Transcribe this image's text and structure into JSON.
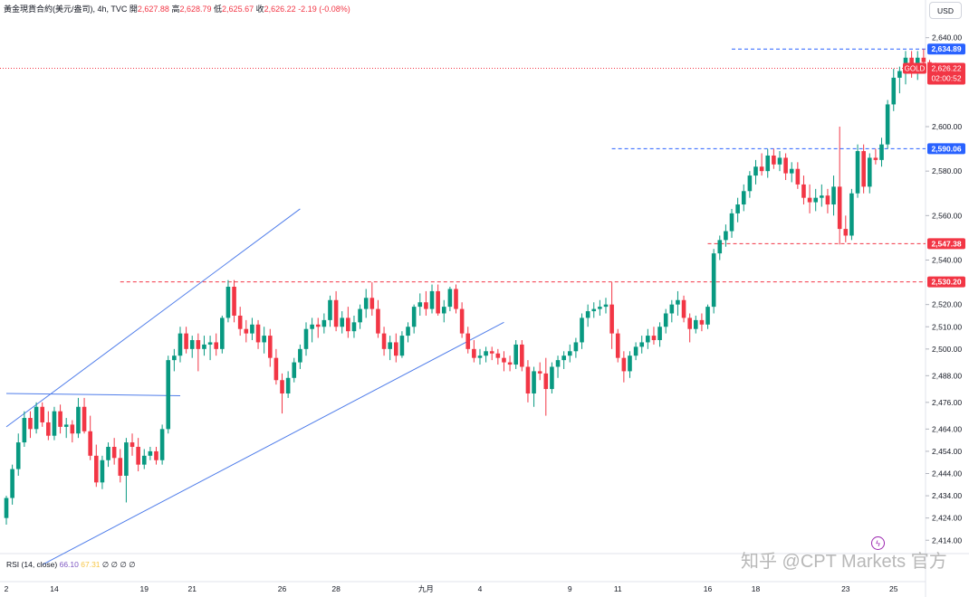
{
  "header": {
    "title": "黃金現貨合約(美元/盎司), 4h, TVC",
    "open_label": "開",
    "open": "2,627.88",
    "high_label": "高",
    "high": "2,628.79",
    "low_label": "低",
    "low": "2,625.67",
    "close_label": "收",
    "close": "2,626.22",
    "change": "-2.19 (-0.08%)"
  },
  "currency_button": "USD",
  "rsi": {
    "label": "RSI (14, close)",
    "value1": "66.10",
    "value2": "67.31",
    "extras": "∅ ∅ ∅ ∅"
  },
  "watermark": "知乎 @CPT Markets 官方",
  "colors": {
    "up": "#089981",
    "down": "#f23645",
    "trendline": "#4f7dea",
    "level_blue": "#2962ff",
    "level_red": "#f23645"
  },
  "chart_data": {
    "type": "candlestick",
    "symbol": "GOLD",
    "interval": "4h",
    "ylim": [
      2408,
      2648
    ],
    "y_ticks": [
      "2,640.00",
      "2,600.00",
      "2,580.00",
      "2,560.00",
      "2,540.00",
      "2,520.00",
      "2,510.00",
      "2,500.00",
      "2,488.00",
      "2,476.00",
      "2,464.00",
      "2,454.00",
      "2,444.00",
      "2,434.00",
      "2,424.00",
      "2,414.00"
    ],
    "x_labels": [
      "2",
      "14",
      "19",
      "21",
      "26",
      "28",
      "九月",
      "4",
      "9",
      "11",
      "16",
      "18",
      "23",
      "25"
    ],
    "last_price_label": "GOLD",
    "last_price": "2,626.22",
    "countdown": "02:00:52",
    "levels": [
      {
        "label": "2,634.89",
        "value": 2634.89,
        "color": "blue"
      },
      {
        "label": "2,590.06",
        "value": 2590.06,
        "color": "blue"
      },
      {
        "label": "2,547.38",
        "value": 2547.38,
        "color": "red"
      },
      {
        "label": "2,530.20",
        "value": 2530.2,
        "color": "red"
      }
    ],
    "trendlines": [
      {
        "from": [
          0,
          2465
        ],
        "to": [
          49,
          2563
        ]
      },
      {
        "from": [
          6,
          2403
        ],
        "to": [
          83,
          2512
        ]
      },
      {
        "from": [
          0,
          2480
        ],
        "to": [
          29,
          2479
        ]
      }
    ],
    "candles": [
      {
        "o": 2424,
        "h": 2434,
        "l": 2421,
        "c": 2433
      },
      {
        "o": 2433,
        "h": 2448,
        "l": 2430,
        "c": 2446
      },
      {
        "o": 2446,
        "h": 2462,
        "l": 2443,
        "c": 2458
      },
      {
        "o": 2458,
        "h": 2472,
        "l": 2456,
        "c": 2469
      },
      {
        "o": 2469,
        "h": 2472,
        "l": 2460,
        "c": 2464
      },
      {
        "o": 2464,
        "h": 2476,
        "l": 2462,
        "c": 2474
      },
      {
        "o": 2474,
        "h": 2476,
        "l": 2465,
        "c": 2467
      },
      {
        "o": 2467,
        "h": 2472,
        "l": 2459,
        "c": 2461
      },
      {
        "o": 2461,
        "h": 2474,
        "l": 2459,
        "c": 2472
      },
      {
        "o": 2472,
        "h": 2475,
        "l": 2462,
        "c": 2465
      },
      {
        "o": 2465,
        "h": 2469,
        "l": 2460,
        "c": 2466
      },
      {
        "o": 2466,
        "h": 2468,
        "l": 2458,
        "c": 2462
      },
      {
        "o": 2462,
        "h": 2478,
        "l": 2460,
        "c": 2474
      },
      {
        "o": 2474,
        "h": 2478,
        "l": 2462,
        "c": 2463
      },
      {
        "o": 2463,
        "h": 2470,
        "l": 2450,
        "c": 2452
      },
      {
        "o": 2452,
        "h": 2457,
        "l": 2438,
        "c": 2440
      },
      {
        "o": 2440,
        "h": 2452,
        "l": 2437,
        "c": 2450
      },
      {
        "o": 2450,
        "h": 2458,
        "l": 2447,
        "c": 2456
      },
      {
        "o": 2456,
        "h": 2460,
        "l": 2448,
        "c": 2451
      },
      {
        "o": 2451,
        "h": 2455,
        "l": 2440,
        "c": 2443
      },
      {
        "o": 2443,
        "h": 2460,
        "l": 2431,
        "c": 2458
      },
      {
        "o": 2458,
        "h": 2462,
        "l": 2452,
        "c": 2456
      },
      {
        "o": 2456,
        "h": 2460,
        "l": 2445,
        "c": 2448
      },
      {
        "o": 2448,
        "h": 2455,
        "l": 2446,
        "c": 2452
      },
      {
        "o": 2452,
        "h": 2456,
        "l": 2450,
        "c": 2454
      },
      {
        "o": 2454,
        "h": 2456,
        "l": 2448,
        "c": 2450
      },
      {
        "o": 2450,
        "h": 2466,
        "l": 2448,
        "c": 2464
      },
      {
        "o": 2464,
        "h": 2497,
        "l": 2462,
        "c": 2495
      },
      {
        "o": 2495,
        "h": 2500,
        "l": 2490,
        "c": 2497
      },
      {
        "o": 2497,
        "h": 2510,
        "l": 2494,
        "c": 2507
      },
      {
        "o": 2507,
        "h": 2510,
        "l": 2498,
        "c": 2500
      },
      {
        "o": 2500,
        "h": 2506,
        "l": 2496,
        "c": 2504
      },
      {
        "o": 2504,
        "h": 2507,
        "l": 2490,
        "c": 2500
      },
      {
        "o": 2500,
        "h": 2506,
        "l": 2497,
        "c": 2502
      },
      {
        "o": 2502,
        "h": 2506,
        "l": 2495,
        "c": 2503
      },
      {
        "o": 2503,
        "h": 2507,
        "l": 2497,
        "c": 2500
      },
      {
        "o": 2500,
        "h": 2515,
        "l": 2498,
        "c": 2514
      },
      {
        "o": 2514,
        "h": 2531,
        "l": 2512,
        "c": 2528
      },
      {
        "o": 2528,
        "h": 2531,
        "l": 2512,
        "c": 2515
      },
      {
        "o": 2515,
        "h": 2519,
        "l": 2506,
        "c": 2509
      },
      {
        "o": 2509,
        "h": 2513,
        "l": 2503,
        "c": 2507
      },
      {
        "o": 2507,
        "h": 2514,
        "l": 2504,
        "c": 2511
      },
      {
        "o": 2511,
        "h": 2513,
        "l": 2500,
        "c": 2503
      },
      {
        "o": 2503,
        "h": 2510,
        "l": 2498,
        "c": 2506
      },
      {
        "o": 2506,
        "h": 2509,
        "l": 2492,
        "c": 2496
      },
      {
        "o": 2496,
        "h": 2500,
        "l": 2484,
        "c": 2486
      },
      {
        "o": 2486,
        "h": 2489,
        "l": 2471,
        "c": 2480
      },
      {
        "o": 2480,
        "h": 2490,
        "l": 2478,
        "c": 2487
      },
      {
        "o": 2487,
        "h": 2496,
        "l": 2485,
        "c": 2494
      },
      {
        "o": 2494,
        "h": 2502,
        "l": 2491,
        "c": 2500
      },
      {
        "o": 2500,
        "h": 2512,
        "l": 2497,
        "c": 2509
      },
      {
        "o": 2509,
        "h": 2514,
        "l": 2503,
        "c": 2511
      },
      {
        "o": 2511,
        "h": 2514,
        "l": 2505,
        "c": 2510
      },
      {
        "o": 2510,
        "h": 2516,
        "l": 2507,
        "c": 2513
      },
      {
        "o": 2513,
        "h": 2524,
        "l": 2510,
        "c": 2522
      },
      {
        "o": 2522,
        "h": 2526,
        "l": 2508,
        "c": 2510
      },
      {
        "o": 2510,
        "h": 2517,
        "l": 2507,
        "c": 2514
      },
      {
        "o": 2514,
        "h": 2519,
        "l": 2505,
        "c": 2508
      },
      {
        "o": 2508,
        "h": 2515,
        "l": 2505,
        "c": 2512
      },
      {
        "o": 2512,
        "h": 2520,
        "l": 2509,
        "c": 2518
      },
      {
        "o": 2518,
        "h": 2527,
        "l": 2514,
        "c": 2523
      },
      {
        "o": 2523,
        "h": 2530,
        "l": 2515,
        "c": 2518
      },
      {
        "o": 2518,
        "h": 2522,
        "l": 2505,
        "c": 2507
      },
      {
        "o": 2507,
        "h": 2510,
        "l": 2497,
        "c": 2500
      },
      {
        "o": 2500,
        "h": 2506,
        "l": 2495,
        "c": 2503
      },
      {
        "o": 2503,
        "h": 2507,
        "l": 2494,
        "c": 2497
      },
      {
        "o": 2497,
        "h": 2508,
        "l": 2496,
        "c": 2506
      },
      {
        "o": 2506,
        "h": 2512,
        "l": 2503,
        "c": 2510
      },
      {
        "o": 2510,
        "h": 2520,
        "l": 2507,
        "c": 2519
      },
      {
        "o": 2519,
        "h": 2525,
        "l": 2515,
        "c": 2521
      },
      {
        "o": 2521,
        "h": 2526,
        "l": 2515,
        "c": 2518
      },
      {
        "o": 2518,
        "h": 2529,
        "l": 2516,
        "c": 2526
      },
      {
        "o": 2526,
        "h": 2529,
        "l": 2515,
        "c": 2516
      },
      {
        "o": 2516,
        "h": 2522,
        "l": 2512,
        "c": 2519
      },
      {
        "o": 2519,
        "h": 2528,
        "l": 2517,
        "c": 2527
      },
      {
        "o": 2527,
        "h": 2529,
        "l": 2516,
        "c": 2518
      },
      {
        "o": 2518,
        "h": 2521,
        "l": 2505,
        "c": 2507
      },
      {
        "o": 2507,
        "h": 2510,
        "l": 2498,
        "c": 2500
      },
      {
        "o": 2500,
        "h": 2504,
        "l": 2494,
        "c": 2496
      },
      {
        "o": 2496,
        "h": 2500,
        "l": 2493,
        "c": 2497
      },
      {
        "o": 2497,
        "h": 2501,
        "l": 2494,
        "c": 2499
      },
      {
        "o": 2499,
        "h": 2501,
        "l": 2495,
        "c": 2498
      },
      {
        "o": 2498,
        "h": 2500,
        "l": 2493,
        "c": 2496
      },
      {
        "o": 2496,
        "h": 2499,
        "l": 2490,
        "c": 2494
      },
      {
        "o": 2494,
        "h": 2497,
        "l": 2490,
        "c": 2493
      },
      {
        "o": 2493,
        "h": 2504,
        "l": 2491,
        "c": 2502
      },
      {
        "o": 2502,
        "h": 2504,
        "l": 2490,
        "c": 2492
      },
      {
        "o": 2492,
        "h": 2495,
        "l": 2476,
        "c": 2480
      },
      {
        "o": 2480,
        "h": 2492,
        "l": 2474,
        "c": 2490
      },
      {
        "o": 2490,
        "h": 2494,
        "l": 2486,
        "c": 2489
      },
      {
        "o": 2489,
        "h": 2496,
        "l": 2470,
        "c": 2482
      },
      {
        "o": 2482,
        "h": 2494,
        "l": 2480,
        "c": 2492
      },
      {
        "o": 2492,
        "h": 2497,
        "l": 2487,
        "c": 2495
      },
      {
        "o": 2495,
        "h": 2499,
        "l": 2491,
        "c": 2497
      },
      {
        "o": 2497,
        "h": 2502,
        "l": 2494,
        "c": 2499
      },
      {
        "o": 2499,
        "h": 2505,
        "l": 2496,
        "c": 2503
      },
      {
        "o": 2503,
        "h": 2516,
        "l": 2500,
        "c": 2514
      },
      {
        "o": 2514,
        "h": 2520,
        "l": 2510,
        "c": 2517
      },
      {
        "o": 2517,
        "h": 2521,
        "l": 2514,
        "c": 2518
      },
      {
        "o": 2518,
        "h": 2522,
        "l": 2515,
        "c": 2519
      },
      {
        "o": 2519,
        "h": 2523,
        "l": 2516,
        "c": 2520
      },
      {
        "o": 2520,
        "h": 2530,
        "l": 2500,
        "c": 2507
      },
      {
        "o": 2507,
        "h": 2509,
        "l": 2494,
        "c": 2496
      },
      {
        "o": 2496,
        "h": 2499,
        "l": 2485,
        "c": 2490
      },
      {
        "o": 2490,
        "h": 2499,
        "l": 2487,
        "c": 2497
      },
      {
        "o": 2497,
        "h": 2503,
        "l": 2495,
        "c": 2501
      },
      {
        "o": 2501,
        "h": 2506,
        "l": 2498,
        "c": 2503
      },
      {
        "o": 2503,
        "h": 2509,
        "l": 2500,
        "c": 2506
      },
      {
        "o": 2506,
        "h": 2510,
        "l": 2502,
        "c": 2504
      },
      {
        "o": 2504,
        "h": 2512,
        "l": 2501,
        "c": 2510
      },
      {
        "o": 2510,
        "h": 2518,
        "l": 2507,
        "c": 2516
      },
      {
        "o": 2516,
        "h": 2522,
        "l": 2512,
        "c": 2520
      },
      {
        "o": 2520,
        "h": 2526,
        "l": 2515,
        "c": 2522
      },
      {
        "o": 2522,
        "h": 2524,
        "l": 2512,
        "c": 2514
      },
      {
        "o": 2514,
        "h": 2516,
        "l": 2503,
        "c": 2509
      },
      {
        "o": 2509,
        "h": 2515,
        "l": 2507,
        "c": 2513
      },
      {
        "o": 2513,
        "h": 2516,
        "l": 2508,
        "c": 2511
      },
      {
        "o": 2511,
        "h": 2520,
        "l": 2509,
        "c": 2519
      },
      {
        "o": 2519,
        "h": 2545,
        "l": 2516,
        "c": 2543
      },
      {
        "o": 2543,
        "h": 2551,
        "l": 2540,
        "c": 2549
      },
      {
        "o": 2549,
        "h": 2556,
        "l": 2546,
        "c": 2553
      },
      {
        "o": 2553,
        "h": 2563,
        "l": 2550,
        "c": 2561
      },
      {
        "o": 2561,
        "h": 2568,
        "l": 2557,
        "c": 2565
      },
      {
        "o": 2565,
        "h": 2574,
        "l": 2562,
        "c": 2571
      },
      {
        "o": 2571,
        "h": 2580,
        "l": 2568,
        "c": 2578
      },
      {
        "o": 2578,
        "h": 2585,
        "l": 2574,
        "c": 2582
      },
      {
        "o": 2582,
        "h": 2588,
        "l": 2578,
        "c": 2580
      },
      {
        "o": 2580,
        "h": 2590,
        "l": 2577,
        "c": 2587
      },
      {
        "o": 2587,
        "h": 2590,
        "l": 2581,
        "c": 2583
      },
      {
        "o": 2583,
        "h": 2589,
        "l": 2580,
        "c": 2586
      },
      {
        "o": 2586,
        "h": 2588,
        "l": 2576,
        "c": 2579
      },
      {
        "o": 2579,
        "h": 2584,
        "l": 2575,
        "c": 2581
      },
      {
        "o": 2581,
        "h": 2584,
        "l": 2572,
        "c": 2574
      },
      {
        "o": 2574,
        "h": 2578,
        "l": 2565,
        "c": 2568
      },
      {
        "o": 2568,
        "h": 2574,
        "l": 2561,
        "c": 2566
      },
      {
        "o": 2566,
        "h": 2572,
        "l": 2562,
        "c": 2568
      },
      {
        "o": 2568,
        "h": 2574,
        "l": 2564,
        "c": 2569
      },
      {
        "o": 2569,
        "h": 2572,
        "l": 2561,
        "c": 2565
      },
      {
        "o": 2565,
        "h": 2578,
        "l": 2560,
        "c": 2573
      },
      {
        "o": 2573,
        "h": 2600,
        "l": 2547,
        "c": 2554
      },
      {
        "o": 2554,
        "h": 2560,
        "l": 2548,
        "c": 2551
      },
      {
        "o": 2551,
        "h": 2572,
        "l": 2549,
        "c": 2570
      },
      {
        "o": 2570,
        "h": 2592,
        "l": 2568,
        "c": 2589
      },
      {
        "o": 2589,
        "h": 2592,
        "l": 2570,
        "c": 2573
      },
      {
        "o": 2573,
        "h": 2588,
        "l": 2570,
        "c": 2586
      },
      {
        "o": 2586,
        "h": 2590,
        "l": 2583,
        "c": 2585
      },
      {
        "o": 2585,
        "h": 2595,
        "l": 2582,
        "c": 2592
      },
      {
        "o": 2592,
        "h": 2612,
        "l": 2590,
        "c": 2610
      },
      {
        "o": 2610,
        "h": 2626,
        "l": 2607,
        "c": 2622
      },
      {
        "o": 2622,
        "h": 2627,
        "l": 2615,
        "c": 2625
      },
      {
        "o": 2625,
        "h": 2634,
        "l": 2619,
        "c": 2631
      },
      {
        "o": 2631,
        "h": 2634,
        "l": 2622,
        "c": 2624
      },
      {
        "o": 2624,
        "h": 2634,
        "l": 2621,
        "c": 2631
      },
      {
        "o": 2631,
        "h": 2635,
        "l": 2627,
        "c": 2629
      },
      {
        "o": 2629,
        "h": 2630,
        "l": 2626,
        "c": 2627.88
      },
      {
        "o": 2627.88,
        "h": 2628.79,
        "l": 2625.67,
        "c": 2626.22
      }
    ]
  }
}
